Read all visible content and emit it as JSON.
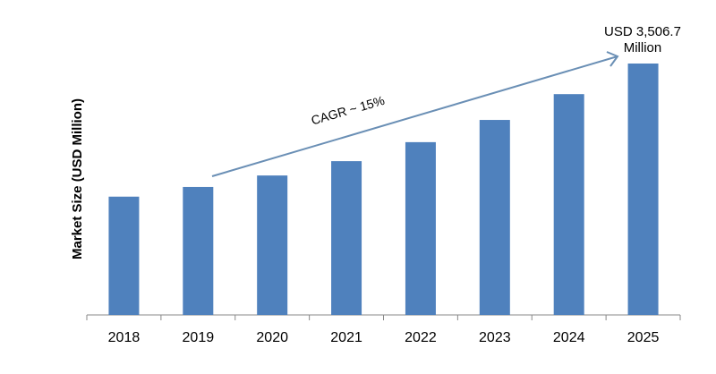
{
  "chart_data": {
    "type": "bar",
    "title": "",
    "xlabel": "",
    "ylabel": "Market Size (USD Million)",
    "categories": [
      "2018",
      "2019",
      "2020",
      "2021",
      "2022",
      "2023",
      "2024",
      "2025"
    ],
    "values": [
      1650,
      1785,
      1945,
      2145,
      2410,
      2720,
      3080,
      3506.7
    ],
    "ylim": [
      0,
      3506.7
    ],
    "grid": false,
    "bar_color": "#4f81bd",
    "annotations": {
      "end_label_line1": "USD 3,506.7",
      "end_label_line2": "Million",
      "cagr": "CAGR ~ 15%",
      "arrow_color": "#6a8fb5"
    }
  }
}
